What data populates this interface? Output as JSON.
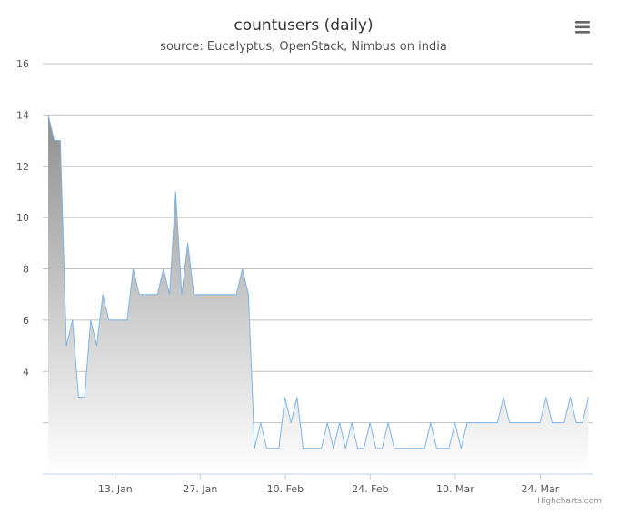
{
  "chart_data": {
    "type": "area",
    "title": "countusers (daily)",
    "subtitle": "source: Eucalyptus, OpenStack, Nimbus on india",
    "x_start": "2013-01-01",
    "x_step_days": 1,
    "values": [
      14,
      13,
      13,
      5,
      6,
      3,
      3,
      6,
      5,
      7,
      6,
      6,
      6,
      6,
      8,
      7,
      7,
      7,
      7,
      8,
      7,
      11,
      7,
      9,
      7,
      7,
      7,
      7,
      7,
      7,
      7,
      7,
      8,
      7,
      1,
      2,
      1,
      1,
      1,
      3,
      2,
      3,
      1,
      1,
      1,
      1,
      2,
      1,
      2,
      1,
      2,
      1,
      1,
      2,
      1,
      1,
      2,
      1,
      1,
      1,
      1,
      1,
      1,
      2,
      1,
      1,
      1,
      2,
      1,
      2,
      2,
      2,
      2,
      2,
      2,
      3,
      2,
      2,
      2,
      2,
      2,
      2,
      3,
      2,
      2,
      2,
      3,
      2,
      2,
      3
    ],
    "ylim": [
      0,
      16
    ],
    "y_ticks": [
      4,
      6,
      8,
      10,
      12,
      14,
      16
    ],
    "x_ticks": [
      {
        "date": "2013-01-13",
        "label": "13. Jan"
      },
      {
        "date": "2013-01-27",
        "label": "27. Jan"
      },
      {
        "date": "2013-02-10",
        "label": "10. Feb"
      },
      {
        "date": "2013-02-24",
        "label": "24. Feb"
      },
      {
        "date": "2013-03-10",
        "label": "10. Mar"
      },
      {
        "date": "2013-03-24",
        "label": "24. Mar"
      }
    ],
    "grid": true,
    "legend": "none",
    "colors": {
      "line": "#7cb5ec",
      "area_top": "#8f8f8f",
      "area_bottom": "#ffffff",
      "grid": "#c0c0c0"
    }
  },
  "menu_icon": "menu-icon",
  "credits": "Highcharts.com"
}
